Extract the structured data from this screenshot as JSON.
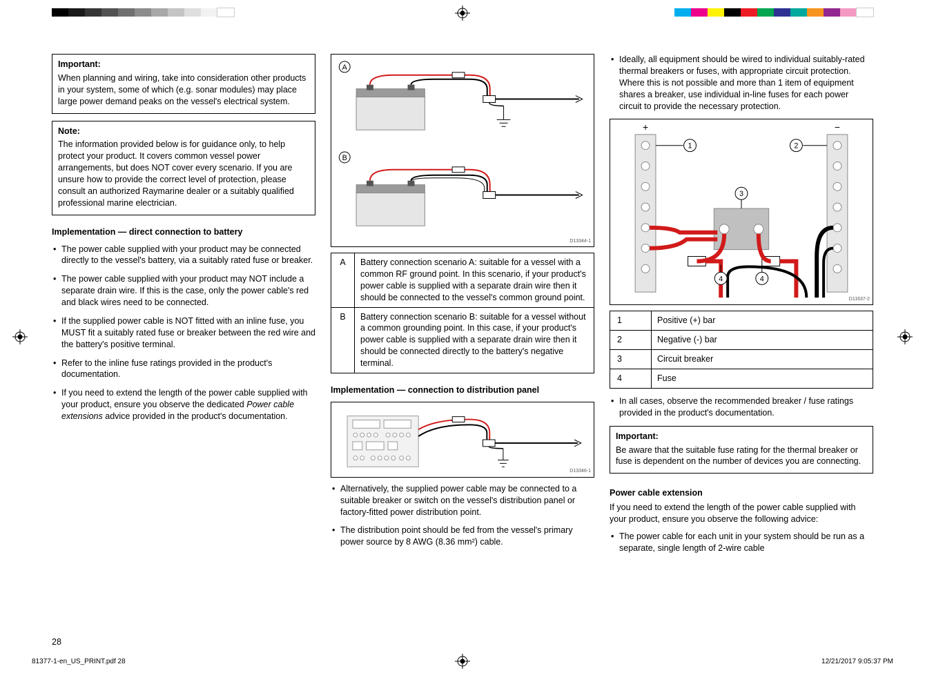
{
  "print_bars": {
    "left_colors": [
      "#000000",
      "#1a1a1a",
      "#353535",
      "#525252",
      "#707070",
      "#8c8c8c",
      "#a8a8a8",
      "#c4c4c4",
      "#dedede",
      "#f2f2f2",
      "#ffffff"
    ],
    "right_colors": [
      "#00aeef",
      "#ec008c",
      "#fff200",
      "#000000",
      "#ed1c24",
      "#00a651",
      "#2e3192",
      "#00a99d",
      "#f7941d",
      "#92278f",
      "#f49ac1",
      "#ffffff"
    ]
  },
  "col1": {
    "important": {
      "title": "Important:",
      "body": "When planning and wiring, take into consideration other products in your system, some of which (e.g. sonar modules) may place large power demand peaks on the vessel's electrical system."
    },
    "note": {
      "title": "Note:",
      "body": "The information provided below is for guidance only, to help protect your product. It covers common vessel power arrangements, but does NOT cover every scenario. If you are unsure how to provide the correct level of protection, please consult an authorized Raymarine dealer or a suitably qualified professional marine electrician."
    },
    "heading": "Implementation — direct connection to battery",
    "bullets": [
      "The power cable supplied with your product may be connected directly to the vessel's battery, via a suitably rated fuse or breaker.",
      "The power cable supplied with your product may NOT include a separate drain wire. If this is the case, only the power cable's red and black wires need to be connected.",
      "If the supplied power cable is NOT fitted with an inline fuse, you MUST fit a suitably rated fuse or breaker between the red wire and the battery's positive terminal.",
      "Refer to the inline fuse ratings provided in the product's documentation."
    ],
    "bullet5_a": "If you need to extend the length of the power cable supplied with your product, ensure you observe the dedicated ",
    "bullet5_i": "Power cable extensions",
    "bullet5_b": " advice provided in the product's documentation."
  },
  "col2": {
    "battery_diagram": {
      "id": "D13344-1",
      "labelA": "A",
      "labelB": "B",
      "colors": {
        "red": "#d11a1a",
        "black": "#000000",
        "battery_body": "#e6e6e6",
        "battery_dark": "#9a9a9a",
        "terminal": "#555555"
      }
    },
    "battery_table": {
      "rows": [
        {
          "key": "A",
          "text": "Battery connection scenario A: suitable for a vessel with a common RF ground point. In this scenario, if your product's power cable is supplied with a separate drain wire then it should be connected to the vessel's common ground point."
        },
        {
          "key": "B",
          "text": "Battery connection scenario B: suitable for a vessel without a common grounding point. In this case, if your product's power cable is supplied with a separate drain wire then it should be connected directly to the battery's negative terminal."
        }
      ]
    },
    "heading2": "Implementation — connection to distribution panel",
    "panel_diagram": {
      "id": "D13346-1",
      "colors": {
        "red": "#d11a1a",
        "black": "#000000",
        "panel_body": "#f2f2f2",
        "panel_outline": "#9a9a9a"
      }
    },
    "bullets": [
      "Alternatively, the supplied power cable may be connected to a suitable breaker or switch on the vessel's distribution panel or factory-fitted power distribution point.",
      "The distribution point should be fed from the vessel's primary power source by 8 AWG (8.36 mm²) cable."
    ]
  },
  "col3": {
    "bullet_top": "Ideally, all equipment should be wired to individual suitably-rated thermal breakers or fuses, with appropriate circuit protection. Where this is not possible and more than 1 item of equipment shares a breaker, use individual in-line fuses for each power circuit to provide the necessary protection.",
    "busbar_diagram": {
      "id": "D11637-2",
      "plus": "+",
      "minus": "−",
      "label1": "1",
      "label2": "2",
      "label3": "3",
      "label4a": "4",
      "label4b": "4",
      "colors": {
        "red": "#d11a1a",
        "black": "#000000",
        "bar_body": "#e6e6e6",
        "bar_outline": "#8a8a8a",
        "breaker": "#c0c0c0"
      }
    },
    "legend": {
      "rows": [
        {
          "key": "1",
          "text": "Positive (+) bar"
        },
        {
          "key": "2",
          "text": "Negative (-) bar"
        },
        {
          "key": "3",
          "text": "Circuit breaker"
        },
        {
          "key": "4",
          "text": "Fuse"
        }
      ]
    },
    "bullet_mid": "In all cases, observe the recommended breaker / fuse ratings provided in the product's documentation.",
    "important2": {
      "title": "Important:",
      "body": "Be aware that the suitable fuse rating for the thermal breaker or fuse is dependent on the number of devices you are connecting."
    },
    "ext_heading": "Power cable extension",
    "ext_intro": "If you need to extend the length of the power cable supplied with your product, ensure you observe the following advice:",
    "ext_bullet": "The power cable for each unit in your system should be run as a separate, single length of 2-wire cable"
  },
  "page_number": "28",
  "footer": {
    "left": "81377-1-en_US_PRINT.pdf   28",
    "right": "12/21/2017   9:05:37 PM"
  }
}
